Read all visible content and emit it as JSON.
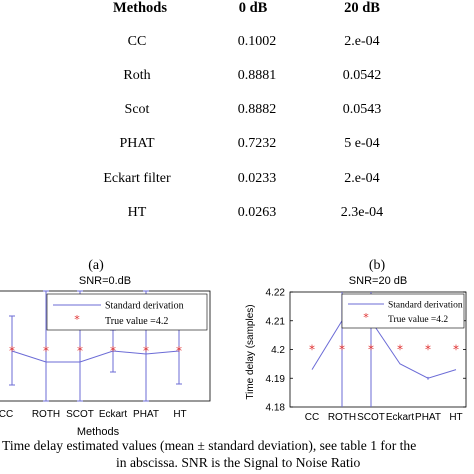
{
  "table": {
    "headers": [
      "Methods",
      "0 dB",
      "20 dB"
    ],
    "rows": [
      [
        "CC",
        "0.1002",
        "2.e-04"
      ],
      [
        "Roth",
        "0.8881",
        "0.0542"
      ],
      [
        "Scot",
        "0.8882",
        "0.0543"
      ],
      [
        "PHAT",
        "0.7232",
        "5 e-04"
      ],
      [
        "Eckart filter",
        "0.0233",
        "2.e-04"
      ],
      [
        "HT",
        "0.0263",
        "2.3e-04"
      ]
    ]
  },
  "panel_labels": {
    "a": "(a)",
    "b": "(b)"
  },
  "chart_data": [
    {
      "type": "line",
      "title": "SNR=0.dB",
      "xlabel": "Methods",
      "ylabel": "",
      "categories": [
        "CC",
        "ROTH",
        "SCOT",
        "Eckart",
        "PHAT",
        "HT"
      ],
      "tick_labels": [
        "CC",
        "ROTH",
        "SCOT",
        "Eckart",
        "PHAT",
        "HT"
      ],
      "series": [
        {
          "name": "Standard derivation",
          "values": [
            0.1002,
            0.8881,
            0.8882,
            0.0233,
            0.7232,
            0.0263
          ]
        },
        {
          "name": "True value =4.2",
          "values": [
            4.2,
            4.2,
            4.2,
            4.2,
            4.2,
            4.2
          ]
        }
      ],
      "colors": {
        "std": "#6b6bd6",
        "true": "#e03030"
      },
      "grid": false,
      "legend": "top"
    },
    {
      "type": "line",
      "title": "SNR=20 dB",
      "xlabel": "Methods",
      "ylabel": "Time delay (samples)",
      "categories": [
        "CC",
        "ROTH",
        "SCOT",
        "Eckart",
        "PHAT",
        "HT"
      ],
      "tick_labels": [
        "CC",
        "ROTH",
        "SCOT",
        "Eckart",
        "PHAT",
        "HT"
      ],
      "y_ticks": [
        "4.22",
        "4.21",
        "4.2",
        "4.19",
        "4.18"
      ],
      "ylim": [
        4.18,
        4.22
      ],
      "means": [
        4.193,
        4.21,
        4.21,
        4.195,
        4.19,
        4.193
      ],
      "std": [
        0.0002,
        0.0542,
        0.0543,
        0.0002,
        0.0005,
        0.00023
      ],
      "true_value": 4.2,
      "series": [
        {
          "name": "Standard derivation",
          "values": [
            4.193,
            4.21,
            4.21,
            4.195,
            4.19,
            4.193
          ]
        },
        {
          "name": "True value =4.2",
          "values": [
            4.2,
            4.2,
            4.2,
            4.2,
            4.2,
            4.2
          ]
        }
      ],
      "colors": {
        "std": "#6b6bd6",
        "true": "#e03030"
      },
      "grid": false,
      "legend": "top"
    }
  ],
  "caption": {
    "line1": "Time delay estimated values (mean ± standard deviation), see table 1 for the",
    "line2": "in abscissa. SNR is the Signal to Noise Ratio"
  }
}
